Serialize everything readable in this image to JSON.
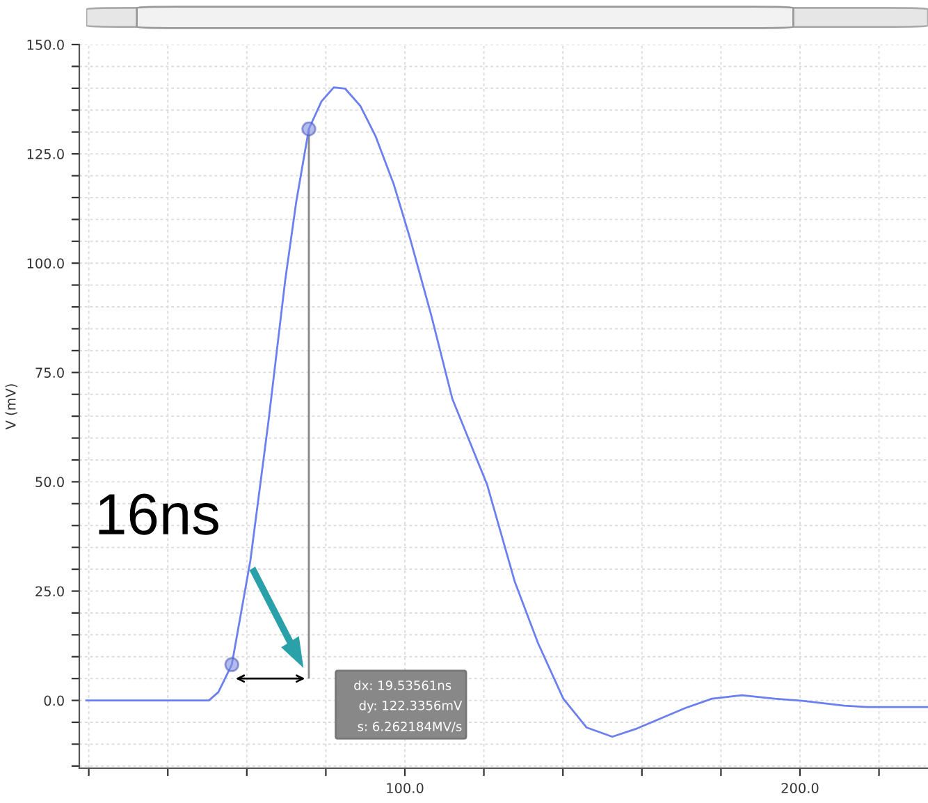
{
  "chart_data": {
    "type": "line",
    "ylabel": "V (mV)",
    "xlim": [
      17.6,
      232.4
    ],
    "ylim": [
      -15.5,
      150
    ],
    "xticks": [
      {
        "value": 20,
        "label": null
      },
      {
        "value": 40,
        "label": null
      },
      {
        "value": 60,
        "label": null
      },
      {
        "value": 80,
        "label": null
      },
      {
        "value": 100,
        "label": "100.0"
      },
      {
        "value": 120,
        "label": null
      },
      {
        "value": 140,
        "label": null
      },
      {
        "value": 160,
        "label": null
      },
      {
        "value": 180,
        "label": null
      },
      {
        "value": 200,
        "label": "200.0"
      },
      {
        "value": 220,
        "label": null
      }
    ],
    "yticks": [
      {
        "value": -15,
        "label": null
      },
      {
        "value": -10,
        "label": null
      },
      {
        "value": -5,
        "label": null
      },
      {
        "value": 0,
        "label": "0.0"
      },
      {
        "value": 5,
        "label": null
      },
      {
        "value": 10,
        "label": null
      },
      {
        "value": 15,
        "label": null
      },
      {
        "value": 20,
        "label": null
      },
      {
        "value": 25,
        "label": "25.0"
      },
      {
        "value": 30,
        "label": null
      },
      {
        "value": 35,
        "label": null
      },
      {
        "value": 40,
        "label": null
      },
      {
        "value": 45,
        "label": null
      },
      {
        "value": 50,
        "label": "50.0"
      },
      {
        "value": 55,
        "label": null
      },
      {
        "value": 60,
        "label": null
      },
      {
        "value": 65,
        "label": null
      },
      {
        "value": 70,
        "label": null
      },
      {
        "value": 75,
        "label": "75.0"
      },
      {
        "value": 80,
        "label": null
      },
      {
        "value": 85,
        "label": null
      },
      {
        "value": 90,
        "label": null
      },
      {
        "value": 95,
        "label": null
      },
      {
        "value": 100,
        "label": "100.0"
      },
      {
        "value": 105,
        "label": null
      },
      {
        "value": 110,
        "label": null
      },
      {
        "value": 115,
        "label": null
      },
      {
        "value": 120,
        "label": null
      },
      {
        "value": 125,
        "label": "125.0"
      },
      {
        "value": 130,
        "label": null
      },
      {
        "value": 135,
        "label": null
      },
      {
        "value": 140,
        "label": null
      },
      {
        "value": 145,
        "label": null
      },
      {
        "value": 150,
        "label": "150.0"
      }
    ],
    "grid": true,
    "line_style": "solid",
    "series": [
      {
        "color": "#6b7ff0",
        "marker": "none",
        "x": [
          19.4,
          50.4,
          52.8,
          56.2,
          60.9,
          65.5,
          69.7,
          72.5,
          75.7,
          78.9,
          82.0,
          84.9,
          88.7,
          92.6,
          97.2,
          101.4,
          106.7,
          112.0,
          120.8,
          127.8,
          133.7,
          140.1,
          146.0,
          152.5,
          158.8,
          171.1,
          177.7,
          185.3,
          193.6,
          200.6,
          211.2,
          217.0,
          232.3
        ],
        "values": [
          0,
          0,
          1.9,
          8.2,
          32,
          64,
          96,
          114,
          130.7,
          137,
          140.2,
          139.9,
          136,
          129,
          118,
          105.4,
          88,
          69,
          49.4,
          27.2,
          13.1,
          0.4,
          -6.2,
          -8.3,
          -6.4,
          -1.7,
          0.4,
          1.2,
          0.4,
          -0.1,
          -1.2,
          -1.5,
          -1.5
        ]
      },
      {
        "type": "scatter",
        "color": "#8090e0",
        "marker": "circle",
        "x": [
          56.2,
          75.7
        ],
        "values": [
          8.2,
          130.7
        ]
      }
    ],
    "annotations": [
      "16ns",
      "dx: 19.53561ns",
      "dy: 122.3356mV",
      "s: 6.262184MV/s"
    ]
  }
}
